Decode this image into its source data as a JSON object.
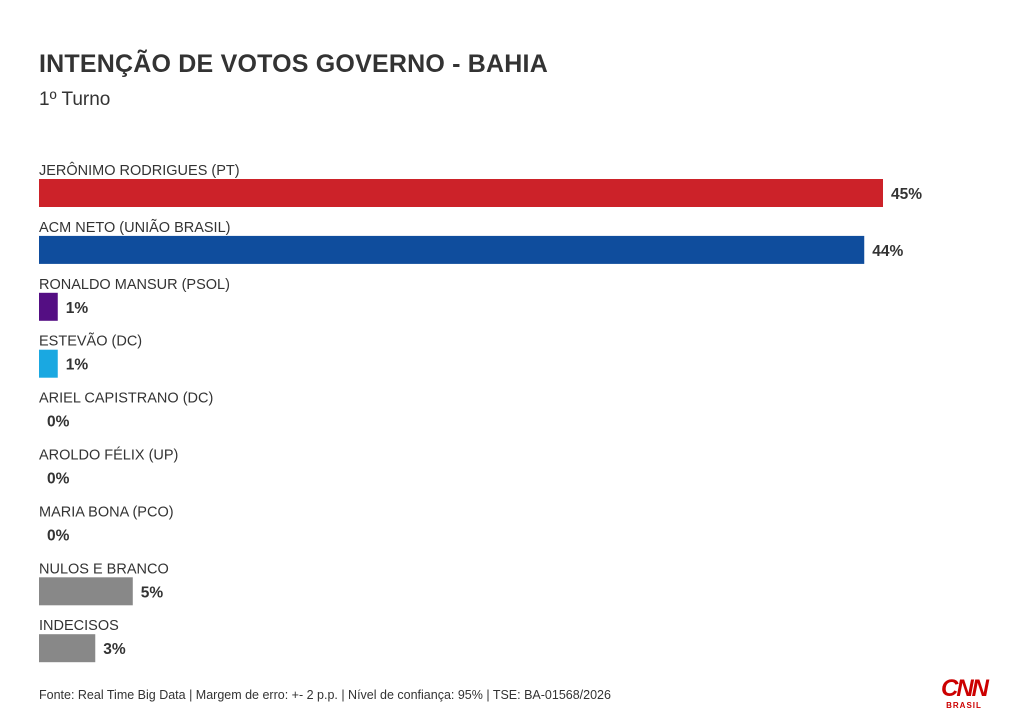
{
  "header": {
    "title": "INTENÇÃO DE VOTOS GOVERNO - BAHIA",
    "subtitle": "1º Turno"
  },
  "footer": {
    "source": "Fonte: Real Time Big Data | Margem de erro: +- 2 p.p. | Nível de confiança: 95% | TSE: BA-01568/2026"
  },
  "logo": {
    "name": "CNN",
    "sub": "BRASIL",
    "color": "#cc0000"
  },
  "chart_data": {
    "type": "bar",
    "orientation": "horizontal",
    "title": "INTENÇÃO DE VOTOS GOVERNO - BAHIA",
    "subtitle": "1º Turno",
    "categories": [
      "JERÔNIMO RODRIGUES (PT)",
      "ACM NETO (UNIÃO BRASIL)",
      "RONALDO MANSUR (PSOL)",
      "ESTEVÃO (DC)",
      "ARIEL CAPISTRANO (DC)",
      "AROLDO FÉLIX (UP)",
      "MARIA BONA (PCO)",
      "NULOS E BRANCO",
      "INDECISOS"
    ],
    "values": [
      45,
      44,
      1,
      1,
      0,
      0,
      0,
      5,
      3
    ],
    "value_labels": [
      "45%",
      "44%",
      "1%",
      "1%",
      "0%",
      "0%",
      "0%",
      "5%",
      "3%"
    ],
    "colors": [
      "#cc2229",
      "#0f4d9d",
      "#540e83",
      "#1aa8e1",
      "#888888",
      "#888888",
      "#888888",
      "#888888",
      "#888888"
    ],
    "unit": "%",
    "xlim": [
      0,
      45
    ],
    "grid": false,
    "legend": "none"
  }
}
